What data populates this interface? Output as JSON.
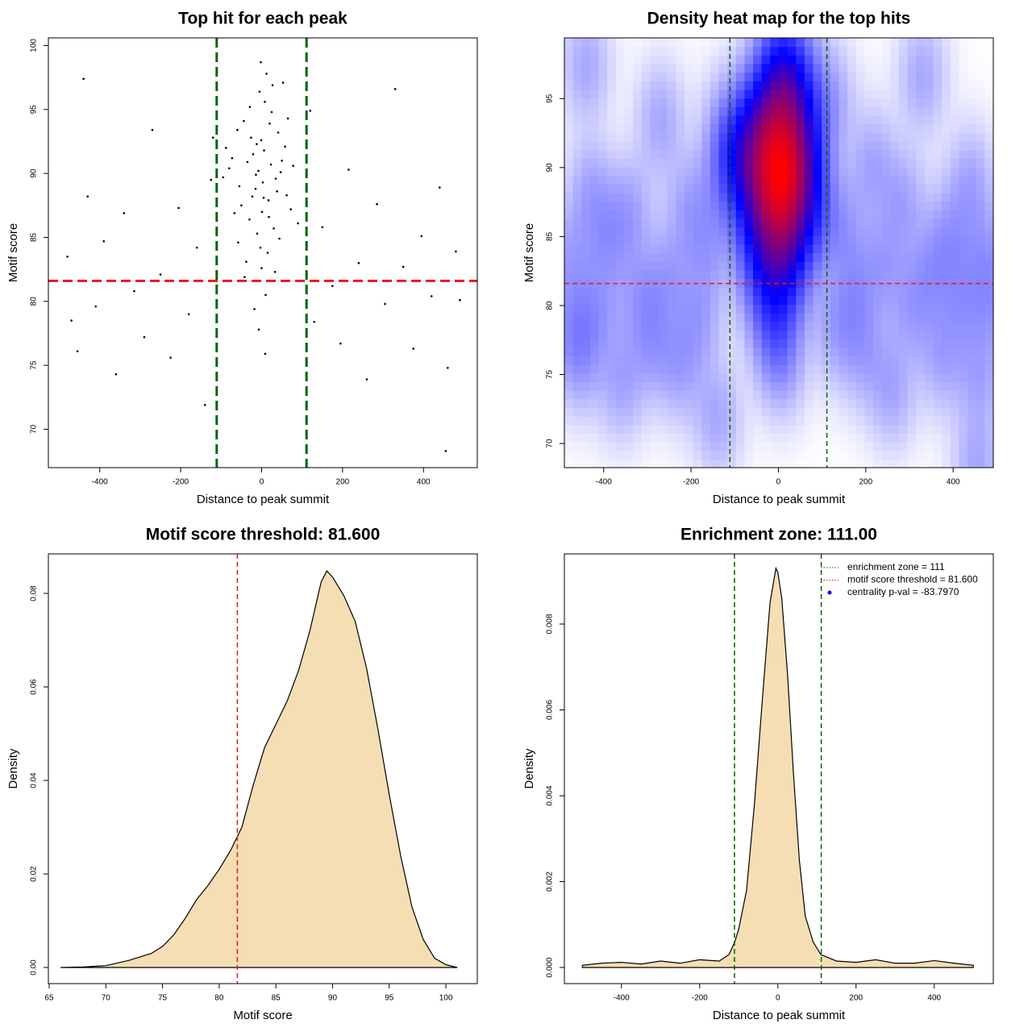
{
  "chart_data": [
    {
      "type": "scatter",
      "title": "Top hit for each peak",
      "xlabel": "Distance to peak summit",
      "ylabel": "Motif score",
      "xlim": [
        -527,
        533
      ],
      "ylim": [
        67.0,
        100.6
      ],
      "xticks": [
        -400,
        -200,
        0,
        200,
        400
      ],
      "yticks": [
        70,
        75,
        80,
        85,
        90,
        95,
        100
      ],
      "color": "#000000",
      "vlines": [
        -111,
        111
      ],
      "vline_color": "#006400",
      "hline": 81.6,
      "hline_color": "#e31a1c",
      "x": [
        -12,
        5,
        23,
        -30,
        41,
        -55,
        8,
        -3,
        17,
        -21,
        62,
        -44,
        30,
        -8,
        12,
        -67,
        50,
        0,
        -15,
        35,
        -38,
        20,
        -5,
        72,
        -80,
        10,
        -26,
        44,
        3,
        -50,
        27,
        -11,
        58,
        -35,
        15,
        -60,
        6,
        -18,
        38,
        -2,
        90,
        -95,
        25,
        -42,
        1,
        -29,
        47,
        -7,
        18,
        -73,
        65,
        -14,
        33,
        -1,
        9,
        -58,
        53,
        -23,
        78,
        -88,
        -480,
        -455,
        -430,
        -410,
        -390,
        -360,
        -340,
        -315,
        -290,
        -270,
        -250,
        -225,
        -205,
        -180,
        -160,
        -140,
        -125,
        130,
        150,
        175,
        195,
        215,
        240,
        260,
        285,
        305,
        330,
        350,
        375,
        395,
        420,
        440,
        460,
        480,
        455,
        -440,
        -120,
        120,
        -470,
        490
      ],
      "values": [
        92.3,
        88.1,
        90.7,
        86.4,
        93.2,
        89.0,
        95.6,
        84.2,
        87.9,
        91.5,
        88.3,
        94.1,
        85.7,
        90.2,
        97.8,
        86.9,
        91.0,
        82.6,
        88.8,
        89.6,
        83.1,
        93.9,
        96.4,
        87.2,
        90.4,
        80.5,
        92.8,
        84.9,
        89.3,
        87.5,
        96.9,
        85.3,
        92.1,
        90.9,
        83.8,
        93.4,
        91.8,
        79.4,
        88.6,
        98.7,
        86.1,
        89.7,
        94.8,
        81.9,
        87.0,
        95.2,
        90.1,
        77.8,
        86.6,
        91.2,
        94.3,
        89.9,
        82.3,
        92.6,
        75.9,
        84.6,
        97.1,
        88.2,
        90.6,
        92.0,
        83.5,
        76.1,
        88.2,
        79.6,
        84.7,
        74.3,
        86.9,
        80.8,
        77.2,
        93.4,
        82.1,
        75.6,
        87.3,
        79.0,
        84.2,
        71.9,
        89.5,
        78.4,
        85.8,
        81.2,
        76.7,
        90.3,
        83.0,
        73.9,
        87.6,
        79.8,
        96.6,
        82.7,
        76.3,
        85.1,
        80.4,
        88.9,
        74.8,
        83.9,
        68.3,
        97.4,
        92.8,
        94.9,
        78.5,
        80.1
      ]
    },
    {
      "type": "heatmap",
      "title": "Density heat map for the top hits",
      "xlabel": "Distance to peak summit",
      "ylabel": "Motif score",
      "xlim": [
        -490,
        492
      ],
      "ylim": [
        68.25,
        99.4
      ],
      "xticks": [
        -400,
        -200,
        0,
        200,
        400
      ],
      "yticks": [
        70,
        75,
        80,
        85,
        90,
        95
      ],
      "colors": [
        "#ffffff",
        "#0000ff",
        "#ff0000"
      ],
      "vlines": [
        -111,
        111
      ],
      "vline_color": "#006400",
      "hline": 81.6,
      "hline_color": "#e31a1c"
    },
    {
      "type": "density",
      "title": "Motif score threshold: 81.600",
      "xlabel": "Motif score",
      "ylabel": "Density",
      "xlim": [
        64.93,
        102.77
      ],
      "ylim": [
        -0.00345,
        0.08845
      ],
      "xticks": [
        65,
        70,
        75,
        80,
        85,
        90,
        95,
        100
      ],
      "yticks": [
        {
          "value": 0,
          "label": "0.00"
        },
        0.02,
        0.04,
        0.06,
        0.08
      ],
      "color": "#f5deb3",
      "vlines": [
        81.6
      ],
      "vline_color": "#e31a1c",
      "x": [
        66,
        68,
        70,
        72,
        74,
        75,
        76,
        77,
        78,
        79,
        80,
        81,
        82,
        83,
        84,
        85,
        86,
        87,
        88,
        89,
        89.5,
        90,
        91,
        92,
        93,
        94,
        95,
        96,
        97,
        98,
        99,
        100,
        101
      ],
      "values": [
        0,
        0.0001,
        0.0004,
        0.0015,
        0.003,
        0.0045,
        0.007,
        0.0105,
        0.0145,
        0.0175,
        0.021,
        0.025,
        0.03,
        0.039,
        0.047,
        0.052,
        0.057,
        0.0635,
        0.072,
        0.0825,
        0.0848,
        0.0835,
        0.0795,
        0.074,
        0.064,
        0.051,
        0.037,
        0.024,
        0.013,
        0.006,
        0.002,
        0.0006,
        0
      ]
    },
    {
      "type": "density",
      "title": "Enrichment zone: 111.00",
      "xlabel": "Distance to peak summit",
      "ylabel": "Density",
      "xlim": [
        -546,
        551
      ],
      "ylim": [
        -0.000376,
        0.009634
      ],
      "xticks": [
        -400,
        -200,
        0,
        200,
        400
      ],
      "yticks": [
        {
          "value": 0,
          "label": "0.000"
        },
        0.002,
        0.004,
        0.006,
        0.008
      ],
      "color": "#f5deb3",
      "vlines": [
        -111,
        111
      ],
      "vline_color": "#006400",
      "x": [
        -500,
        -450,
        -400,
        -350,
        -300,
        -250,
        -200,
        -150,
        -125,
        -110,
        -100,
        -80,
        -60,
        -40,
        -20,
        -5,
        0,
        10,
        25,
        40,
        55,
        70,
        90,
        110,
        150,
        200,
        250,
        300,
        350,
        400,
        450,
        500
      ],
      "values": [
        5e-05,
        0.0001,
        0.00012,
        8e-05,
        0.00015,
        0.0001,
        0.00018,
        0.00015,
        0.0003,
        0.0006,
        0.0009,
        0.0018,
        0.0038,
        0.0062,
        0.0085,
        0.0093,
        0.0092,
        0.0086,
        0.0068,
        0.0045,
        0.0025,
        0.0012,
        0.0006,
        0.0003,
        0.00015,
        0.00012,
        0.00018,
        0.0001,
        0.0001,
        0.00016,
        0.0001,
        5e-05
      ],
      "legend": [
        {
          "label": "enrichment zone = 111",
          "color": "#006400",
          "style": "dotted"
        },
        {
          "label": "motif score threshold = 81.600",
          "color": "#e31a1c",
          "style": "dotted"
        },
        {
          "label": "centrality p-val = -83.7970",
          "color": "#0000ff",
          "style": "point"
        }
      ]
    }
  ]
}
